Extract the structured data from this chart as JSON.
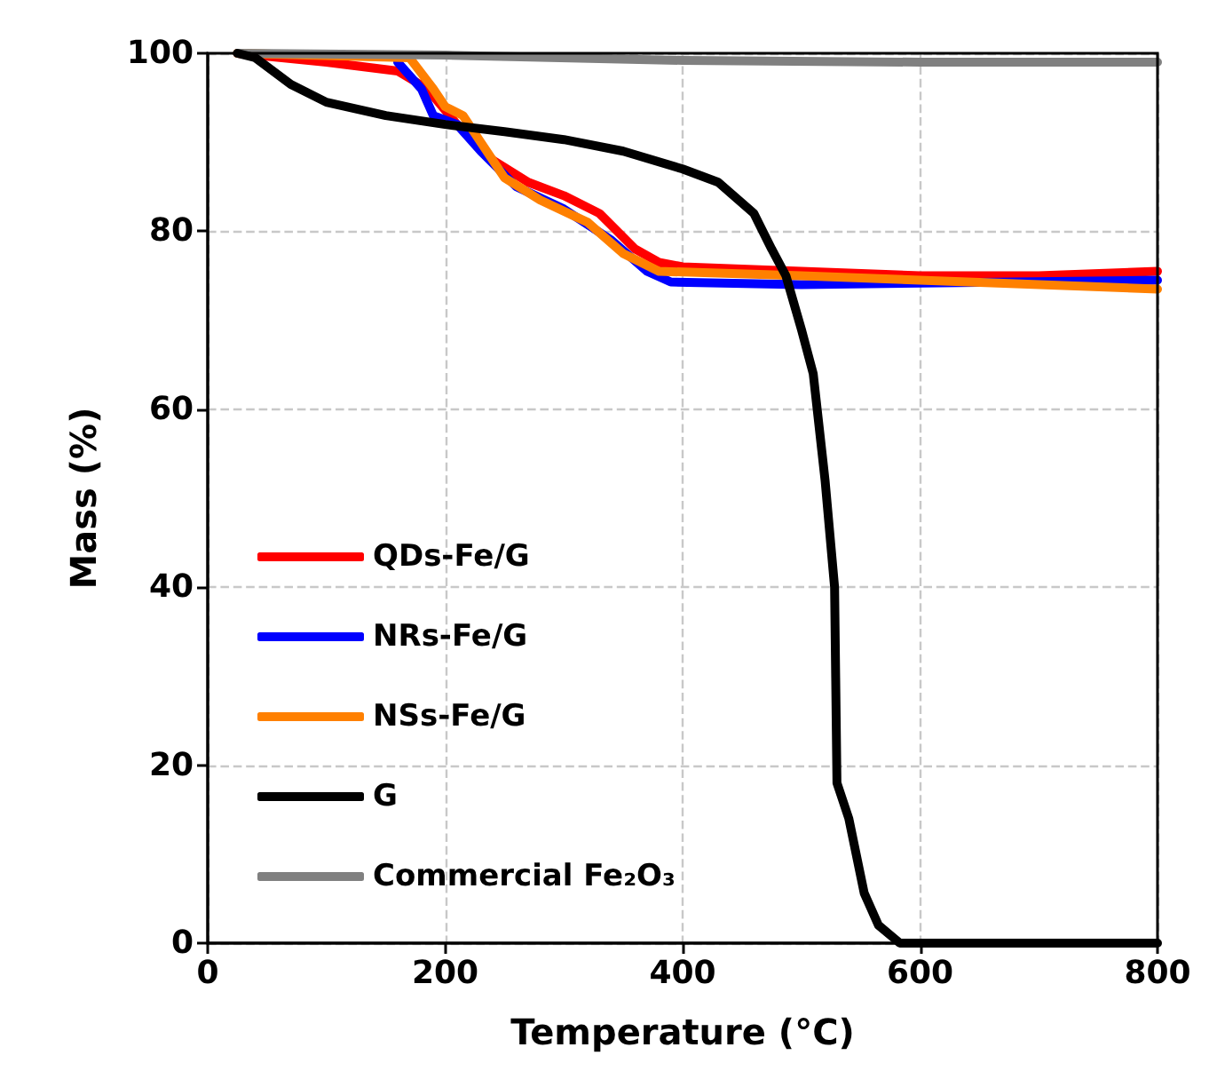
{
  "chart_data": {
    "type": "line",
    "xlabel": "Temperature (°C)",
    "ylabel": "Mass (%)",
    "xlim": [
      0,
      800
    ],
    "xticks": [
      0,
      200,
      400,
      600,
      800
    ],
    "ylim": [
      0,
      100
    ],
    "yticks": [
      0,
      20,
      40,
      60,
      80,
      100
    ],
    "grid": true,
    "legend": "left",
    "marker": "none",
    "line_style": "solid",
    "series": [
      {
        "name": "QDs-Fe/G",
        "color": "#ff0000",
        "x": [
          25,
          100,
          160,
          185,
          210,
          240,
          270,
          300,
          330,
          360,
          380,
          400,
          500,
          600,
          700,
          800
        ],
        "values": [
          100,
          99,
          98,
          96,
          92,
          88,
          85.5,
          84,
          82,
          78,
          76.5,
          76,
          75.5,
          75,
          75,
          75.5
        ]
      },
      {
        "name": "NRs-Fe/G",
        "color": "#0000ff",
        "x": [
          160,
          180,
          190,
          210,
          230,
          260,
          300,
          340,
          370,
          390,
          500,
          800
        ],
        "values": [
          99,
          96,
          93,
          92,
          89,
          85,
          82.5,
          79,
          75.5,
          74.3,
          74,
          74.5
        ]
      },
      {
        "name": "NSs-Fe/G",
        "color": "#ff8000",
        "x": [
          25,
          170,
          190,
          200,
          215,
          230,
          250,
          280,
          320,
          350,
          380,
          500,
          800
        ],
        "values": [
          100,
          99.5,
          96,
          94,
          93,
          90,
          86,
          83.5,
          81,
          77.5,
          75.5,
          75,
          73.5
        ]
      },
      {
        "name": "G",
        "color": "#000000",
        "x": [
          25,
          40,
          50,
          70,
          100,
          150,
          200,
          250,
          300,
          350,
          400,
          430,
          460,
          475,
          487,
          500,
          510,
          520,
          528,
          530,
          540,
          553,
          565,
          583,
          800
        ],
        "values": [
          100,
          99.5,
          98.5,
          96.5,
          94.5,
          93,
          92,
          91.2,
          90.3,
          89,
          87,
          85.5,
          82,
          78,
          75,
          69,
          64,
          52,
          40,
          18,
          14,
          5.6,
          2,
          0,
          0
        ]
      },
      {
        "name": "Commercial Fe₂O₃",
        "color": "#808080",
        "x": [
          25,
          200,
          400,
          600,
          800
        ],
        "values": [
          100,
          99.8,
          99.2,
          99,
          99
        ]
      }
    ]
  }
}
